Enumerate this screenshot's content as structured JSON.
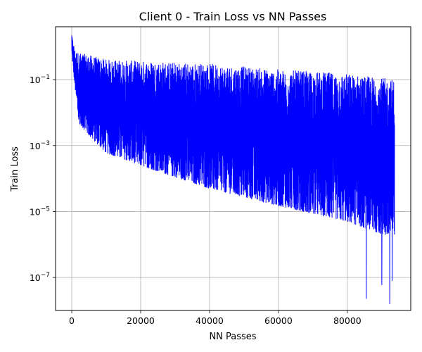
{
  "chart_data": {
    "type": "line",
    "title": "Client 0 - Train Loss vs NN Passes",
    "xlabel": "NN Passes",
    "ylabel": "Train Loss",
    "xlim": [
      -4700,
      98400
    ],
    "ylim": [
      1e-08,
      4
    ],
    "yscale": "log",
    "grid": true,
    "x_ticks": [
      0,
      20000,
      40000,
      60000,
      80000
    ],
    "y_ticks": [
      {
        "value": 0.1,
        "base": "10",
        "exp": "−1"
      },
      {
        "value": 0.001,
        "base": "10",
        "exp": "−3"
      },
      {
        "value": 1e-05,
        "base": "10",
        "exp": "−5"
      },
      {
        "value": 1e-07,
        "base": "10",
        "exp": "−7"
      }
    ],
    "series": [
      {
        "color": "#0000ff",
        "x_range": [
          0,
          93700
        ],
        "start_value": 2.2,
        "upper_envelope": [
          [
            0,
            2.2
          ],
          [
            1000,
            0.7
          ],
          [
            10000,
            0.4
          ],
          [
            40000,
            0.3
          ],
          [
            60000,
            0.2
          ],
          [
            80000,
            0.15
          ],
          [
            93700,
            0.1
          ]
        ],
        "lower_envelope": [
          [
            0,
            0.6
          ],
          [
            1000,
            0.05
          ],
          [
            2000,
            0.005
          ],
          [
            5000,
            0.002
          ],
          [
            10000,
            0.0006
          ],
          [
            20000,
            0.00025
          ],
          [
            40000,
            5e-05
          ],
          [
            60000,
            1.5e-05
          ],
          [
            80000,
            5e-06
          ],
          [
            93700,
            1.5e-06
          ]
        ],
        "min_spikes": [
          [
            85500,
            2.3e-08
          ],
          [
            92300,
            1.6e-08
          ],
          [
            90000,
            6e-08
          ],
          [
            93000,
            8e-08
          ]
        ]
      }
    ]
  }
}
